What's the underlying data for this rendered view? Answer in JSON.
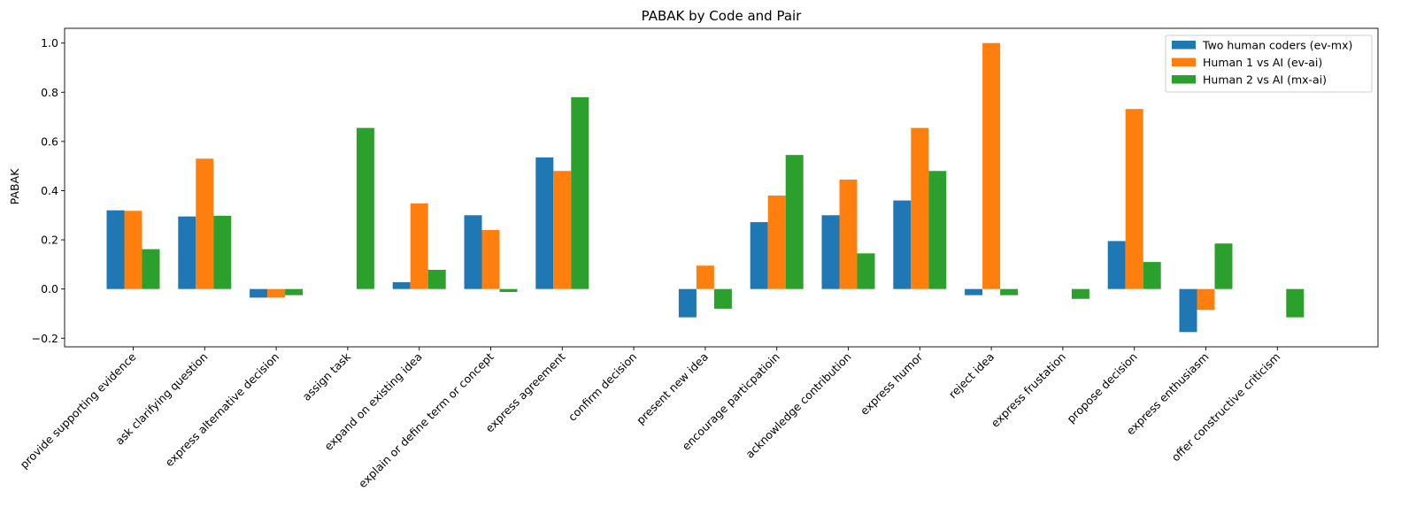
{
  "chart_data": {
    "type": "bar",
    "title": "PABAK by Code and Pair",
    "xlabel": "",
    "ylabel": "PABAK",
    "ylim": [
      -0.235,
      1.06
    ],
    "yticks": [
      -0.2,
      0.0,
      0.2,
      0.4,
      0.6,
      0.8,
      1.0
    ],
    "ytick_labels": [
      "−0.2",
      "0.0",
      "0.2",
      "0.4",
      "0.6",
      "0.8",
      "1.0"
    ],
    "grid": false,
    "legend_position": "top-right",
    "categories": [
      "provide supporting evidence",
      "ask clarifying question",
      "express alternative decision",
      "assign task",
      "expand on existing idea",
      "explain or define term or concept",
      "express agreement",
      "confirm decision",
      "present new idea",
      "encourage particpatioin",
      "acknowledge contribution",
      "express humor",
      "reject idea",
      "express frustation",
      "propose decision",
      "express enthusiasm",
      "offer constructive criticism"
    ],
    "series": [
      {
        "name": "Two human coders (ev-mx)",
        "color": "#1f77b4",
        "values": [
          0.32,
          0.295,
          -0.035,
          0.0,
          0.028,
          0.3,
          0.535,
          0.0,
          -0.115,
          0.272,
          0.3,
          0.36,
          -0.025,
          0.0,
          0.195,
          -0.175,
          0.0
        ]
      },
      {
        "name": "Human 1 vs AI (ev-ai)",
        "color": "#ff7f0e",
        "values": [
          0.318,
          0.53,
          -0.035,
          0.0,
          0.348,
          0.24,
          0.48,
          0.0,
          0.095,
          0.38,
          0.445,
          0.655,
          1.0,
          0.0,
          0.732,
          -0.085,
          0.0
        ]
      },
      {
        "name": "Human 2 vs AI (mx-ai)",
        "color": "#2ca02c",
        "values": [
          0.162,
          0.298,
          -0.025,
          0.655,
          0.078,
          -0.012,
          0.78,
          0.0,
          -0.08,
          0.545,
          0.145,
          0.48,
          -0.025,
          -0.04,
          0.11,
          0.185,
          -0.115
        ]
      }
    ]
  }
}
